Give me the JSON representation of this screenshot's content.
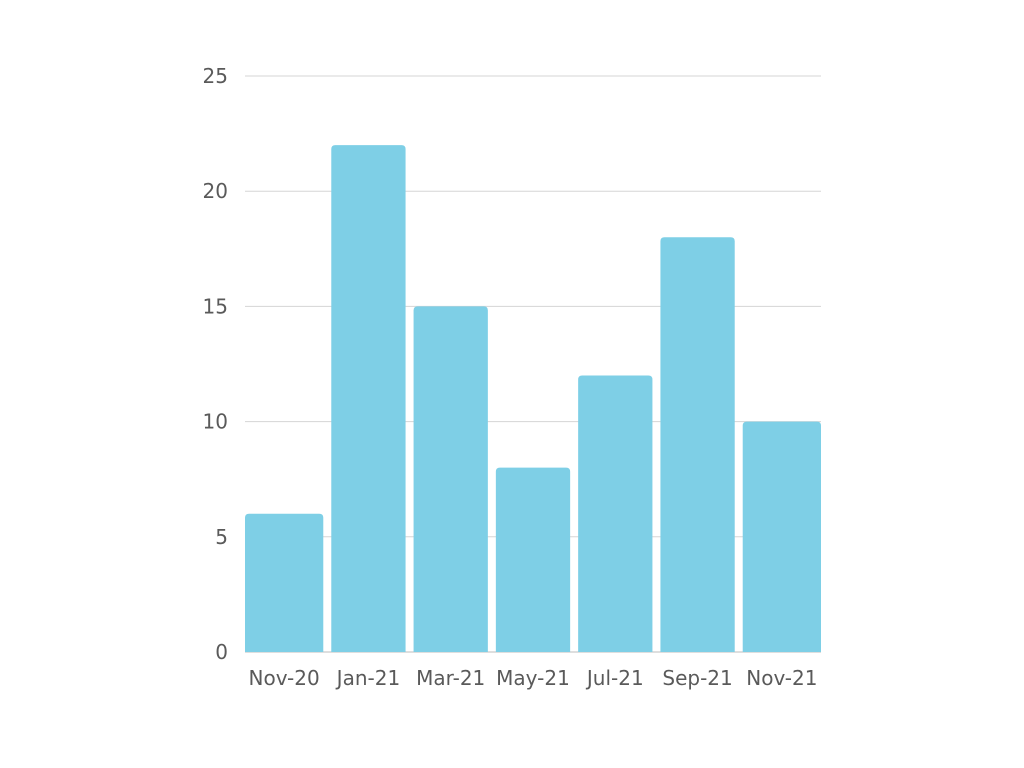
{
  "chart_data": {
    "type": "bar",
    "categories": [
      "Nov-20",
      "Jan-21",
      "Mar-21",
      "May-21",
      "Jul-21",
      "Sep-21",
      "Nov-21"
    ],
    "values": [
      6,
      22,
      15,
      8,
      12,
      18,
      10
    ],
    "title": "",
    "xlabel": "",
    "ylabel": "",
    "ylim": [
      0,
      25
    ],
    "yticks": [
      0,
      5,
      10,
      15,
      20,
      25
    ],
    "grid": true,
    "legend": "none",
    "bar_color": "#7ecfe6",
    "grid_color": "#d5d5d5",
    "label_color": "#5a5a5a"
  }
}
